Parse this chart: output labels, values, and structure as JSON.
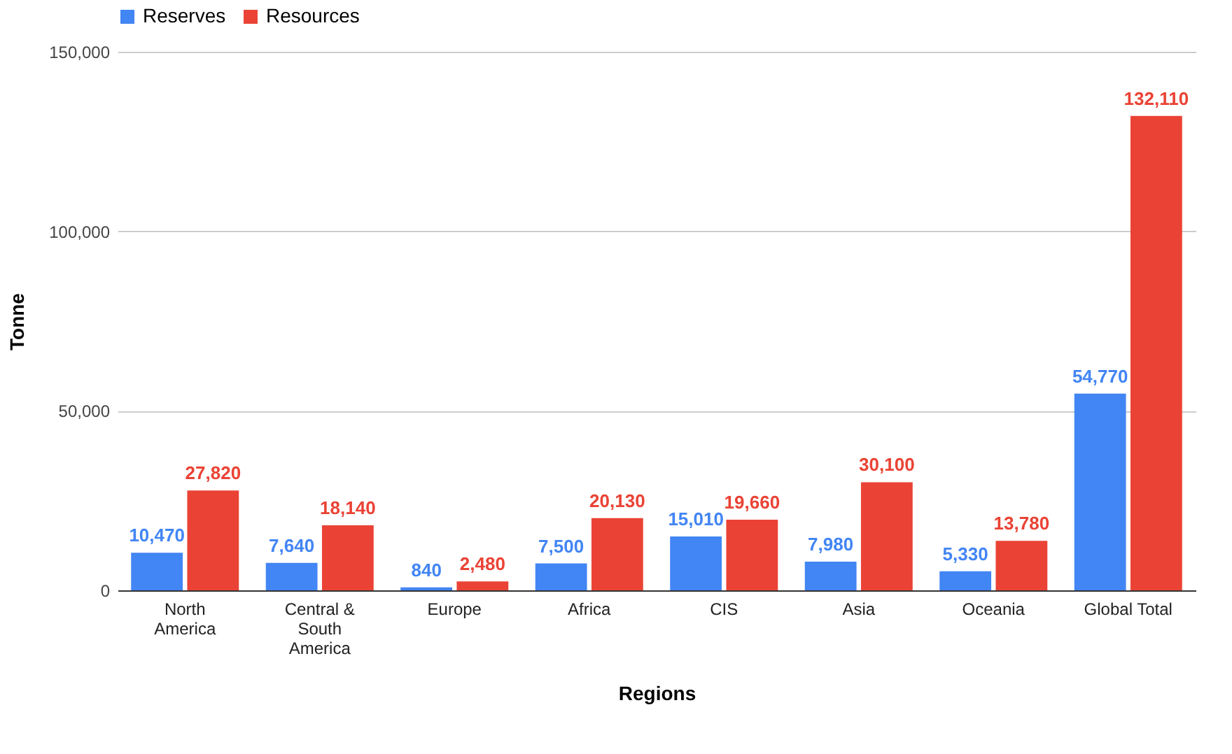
{
  "chart_data": {
    "type": "bar",
    "xlabel": "Regions",
    "ylabel": "Tonne",
    "categories": [
      "North America",
      "Central & South America",
      "Europe",
      "Africa",
      "CIS",
      "Asia",
      "Oceania",
      "Global Total"
    ],
    "series": [
      {
        "name": "Reserves",
        "color": "#4285f4",
        "values": [
          10470,
          7640,
          840,
          7500,
          15010,
          7980,
          5330,
          54770
        ],
        "value_labels": [
          "10,470",
          "7,640",
          "840",
          "7,500",
          "15,010",
          "7,980",
          "5,330",
          "54,770"
        ]
      },
      {
        "name": "Resources",
        "color": "#ea4335",
        "values": [
          27820,
          18140,
          2480,
          20130,
          19660,
          30100,
          13780,
          132110
        ],
        "value_labels": [
          "27,820",
          "18,140",
          "2,480",
          "20,130",
          "19,660",
          "30,100",
          "13,780",
          "132,110"
        ]
      }
    ],
    "ylim": [
      0,
      150000
    ],
    "yticks": [
      0,
      {
        "value": 50000,
        "label": "50,000"
      },
      {
        "value": 100000,
        "label": "100,000"
      },
      {
        "value": 150000,
        "label": "150,000"
      }
    ],
    "grid": "y",
    "legend": "top"
  }
}
